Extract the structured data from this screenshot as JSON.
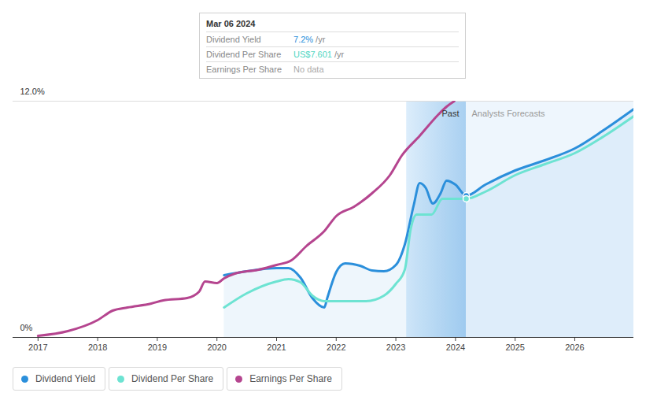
{
  "chart_data": {
    "type": "line",
    "xlim": [
      2016.58,
      2026.99
    ],
    "xticks": [
      2017,
      2018,
      2019,
      2020,
      2021,
      2022,
      2023,
      2024,
      2025,
      2026
    ],
    "ylim": [
      0,
      12
    ],
    "yticks": [
      {
        "value": 0,
        "label": "0%"
      },
      {
        "value": 12,
        "label": "12.0%"
      }
    ],
    "grid": true,
    "legend": "bottom-left",
    "series": [
      {
        "name": "Dividend Yield",
        "color": "#2b8fdb",
        "type": "area",
        "x": [
          2020.12,
          2020.5,
          2021.0,
          2021.2,
          2021.4,
          2021.6,
          2021.8,
          2021.85,
          2022.0,
          2022.15,
          2022.4,
          2022.6,
          2022.8,
          2023.0,
          2023.15,
          2023.3,
          2023.4,
          2023.5,
          2023.62,
          2023.75,
          2023.85,
          2024.0,
          2024.18,
          2024.5,
          2025.0,
          2025.5,
          2026.0,
          2026.5,
          2026.99
        ],
        "values": [
          3.16,
          3.36,
          3.52,
          3.52,
          3.04,
          2.0,
          1.52,
          2.0,
          3.32,
          3.76,
          3.64,
          3.4,
          3.36,
          3.68,
          4.72,
          6.72,
          7.84,
          7.6,
          6.8,
          7.32,
          7.96,
          7.76,
          7.2,
          7.76,
          8.48,
          9.0,
          9.6,
          10.56,
          11.6
        ]
      },
      {
        "name": "Dividend Per Share",
        "color": "#6de3d2",
        "x": [
          2020.12,
          2020.5,
          2021.0,
          2021.2,
          2021.4,
          2021.6,
          2021.8,
          2022.0,
          2022.5,
          2022.8,
          2023.0,
          2023.15,
          2023.25,
          2023.35,
          2023.6,
          2023.78,
          2024.18,
          2024.5,
          2025.0,
          2025.5,
          2026.0,
          2026.5,
          2026.99
        ],
        "values": [
          1.52,
          2.24,
          2.84,
          2.96,
          2.8,
          2.12,
          1.84,
          1.84,
          1.84,
          2.12,
          2.72,
          3.44,
          5.52,
          6.24,
          6.24,
          7.04,
          7.04,
          7.4,
          8.24,
          8.8,
          9.36,
          10.24,
          11.24
        ]
      },
      {
        "name": "Earnings Per Share",
        "color": "#b5458f",
        "x": [
          2017.0,
          2017.5,
          2018.0,
          2018.25,
          2018.5,
          2018.9,
          2019.1,
          2019.5,
          2019.7,
          2019.8,
          2020.0,
          2020.12,
          2020.3,
          2020.7,
          2021.0,
          2021.25,
          2021.5,
          2021.8,
          2022.0,
          2022.3,
          2022.6,
          2022.9,
          2023.1,
          2023.4,
          2023.7,
          2023.85,
          2023.98
        ],
        "values": [
          0.08,
          0.32,
          0.88,
          1.36,
          1.52,
          1.72,
          1.88,
          2.0,
          2.32,
          2.84,
          2.76,
          3.0,
          3.24,
          3.44,
          3.68,
          3.92,
          4.64,
          5.4,
          6.16,
          6.64,
          7.32,
          8.24,
          9.24,
          10.24,
          11.28,
          11.72,
          12.0
        ]
      }
    ],
    "regions": [
      {
        "label": "Past",
        "x": [
          2023.18,
          2024.18
        ]
      },
      {
        "label": "Analysts Forecasts",
        "x": [
          2024.18,
          2026.99
        ]
      }
    ],
    "tooltip": {
      "date": "Mar 06 2024",
      "x": 2024.18,
      "rows": [
        {
          "name": "Dividend Yield",
          "value": "7.2%",
          "unit": "/yr"
        },
        {
          "name": "Dividend Per Share",
          "value": "US$7.601",
          "unit": "/yr"
        },
        {
          "name": "Earnings Per Share",
          "value": "No data"
        }
      ]
    }
  }
}
